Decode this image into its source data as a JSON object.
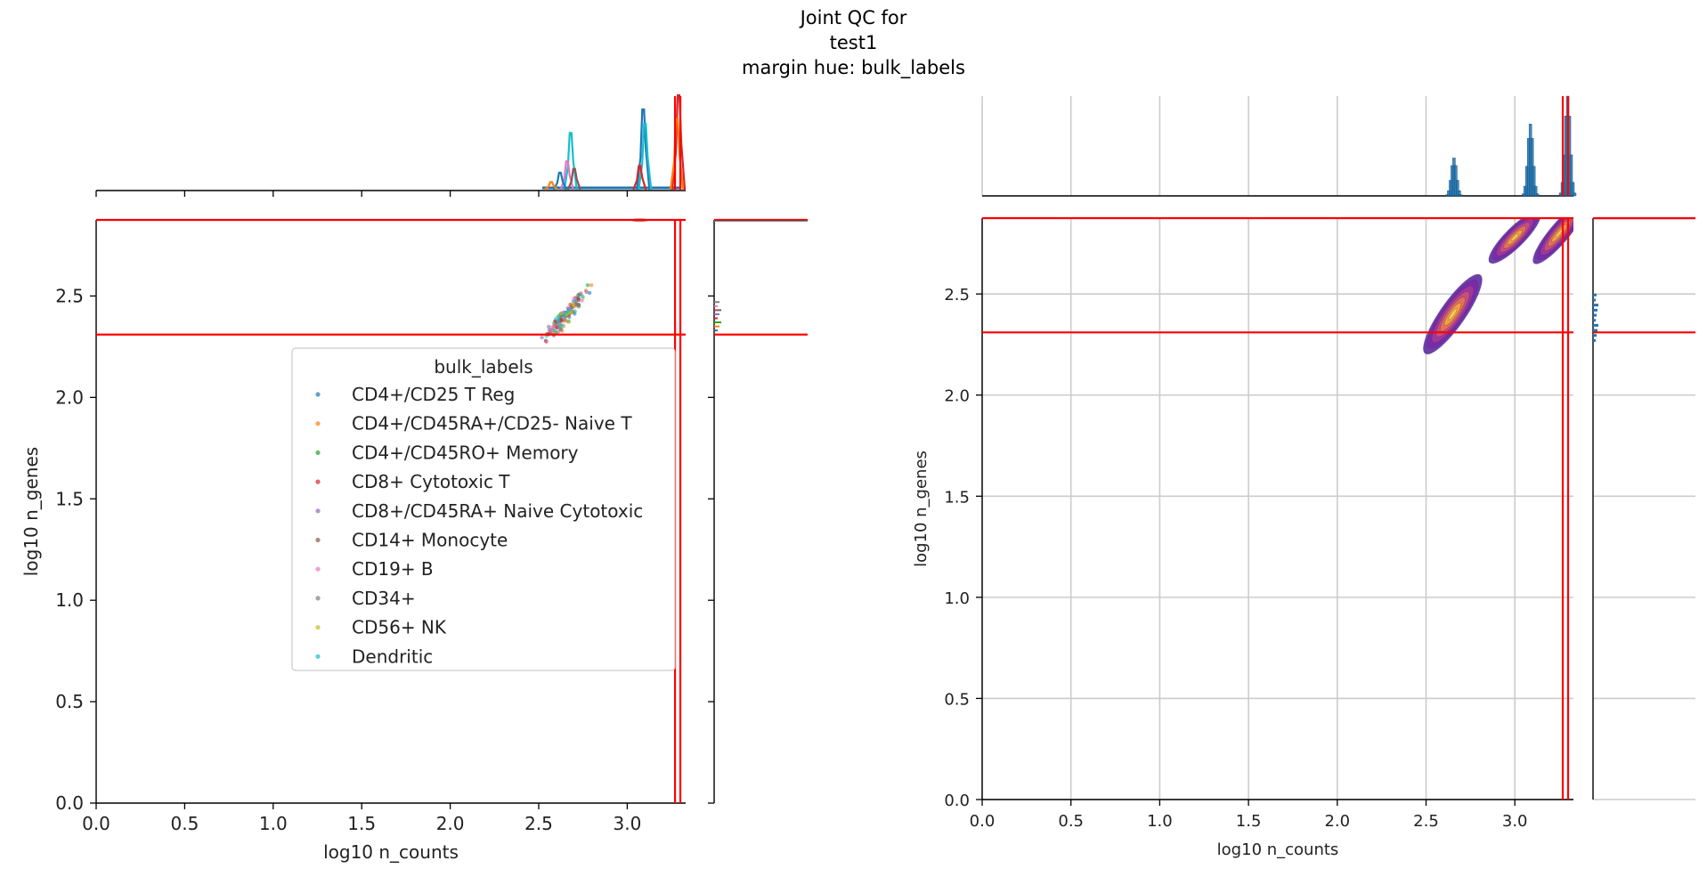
{
  "title_lines": [
    "Joint QC for",
    "test1",
    "margin hue: bulk_labels"
  ],
  "colors": {
    "threshold": "#ff0000",
    "grid": "#cccccc",
    "hist_blue": "#1f77b4",
    "hue_palette": [
      "#1f77b4",
      "#ff7f0e",
      "#2ca02c",
      "#d62728",
      "#9467bd",
      "#8c564b",
      "#e377c2",
      "#7f7f7f",
      "#bcbd22",
      "#17becf"
    ],
    "kde_palette": [
      "#5d2c9e",
      "#7b2aa6",
      "#a23a98",
      "#c9527a",
      "#e3774f",
      "#f4a73a",
      "#fbd04a"
    ]
  },
  "thresholds": {
    "x_vertical": [
      3.27,
      3.3
    ],
    "y_horizontal": [
      2.31,
      2.875
    ]
  },
  "chart_data": [
    {
      "type": "scatter",
      "id": "left-joint",
      "xlabel": "log10 n_counts",
      "ylabel": "log10 n_genes",
      "xlim": [
        0.0,
        3.33
      ],
      "ylim": [
        0.0,
        2.875
      ],
      "xticks": [
        "0.0",
        "0.5",
        "1.0",
        "1.5",
        "2.0",
        "2.5",
        "3.0"
      ],
      "yticks": [
        "0.0",
        "0.5",
        "1.0",
        "1.5",
        "2.0",
        "2.5"
      ],
      "grid": false,
      "legend": {
        "title": "bulk_labels",
        "placement": "center-right",
        "entries": [
          "CD4+/CD25 T Reg",
          "CD4+/CD45RA+/CD25- Naive T",
          "CD4+/CD45RO+ Memory",
          "CD8+ Cytotoxic T",
          "CD8+/CD45RA+ Naive Cytotoxic",
          "CD14+ Monocyte",
          "CD19+ B",
          "CD34+",
          "CD56+ NK",
          "Dendritic"
        ]
      },
      "cluster": {
        "x_center": 2.65,
        "x_spread": 0.07,
        "y_at_center": 2.4,
        "slope": 1.0,
        "points_per_label": 14
      },
      "marginal_x": {
        "type": "histogram-by-hue",
        "peaks": [
          {
            "x": 2.68,
            "height": 0.6,
            "label_index": 9
          },
          {
            "x": 2.66,
            "height": 0.3,
            "label_index": 6
          },
          {
            "x": 2.62,
            "height": 0.18,
            "label_index": 0
          },
          {
            "x": 2.7,
            "height": 0.22,
            "label_index": 5
          },
          {
            "x": 2.57,
            "height": 0.08,
            "label_index": 1
          },
          {
            "x": 3.09,
            "height": 0.85,
            "label_index": 0
          },
          {
            "x": 3.1,
            "height": 0.7,
            "label_index": 9
          },
          {
            "x": 3.07,
            "height": 0.25,
            "label_index": 3
          },
          {
            "x": 3.29,
            "height": 1.0,
            "label_index": 3
          },
          {
            "x": 3.28,
            "height": 0.75,
            "label_index": 1
          }
        ]
      }
    },
    {
      "type": "kde",
      "id": "right-joint",
      "xlabel": "log10 n_counts",
      "ylabel": "log10 n_genes",
      "xlim": [
        0.0,
        3.33
      ],
      "ylim": [
        0.0,
        2.875
      ],
      "xticks": [
        "0.0",
        "0.5",
        "1.0",
        "1.5",
        "2.0",
        "2.5",
        "3.0"
      ],
      "yticks": [
        "0.0",
        "0.5",
        "1.0",
        "1.5",
        "2.0",
        "2.5"
      ],
      "grid": true,
      "kde_blobs": [
        {
          "x": 2.65,
          "y": 2.4,
          "rx": 0.27,
          "ry": 0.07,
          "angle_deg": -55
        },
        {
          "x": 3.0,
          "y": 2.78,
          "rx": 0.2,
          "ry": 0.055,
          "angle_deg": -45
        },
        {
          "x": 3.25,
          "y": 2.8,
          "rx": 0.22,
          "ry": 0.055,
          "angle_deg": -50
        }
      ],
      "marginal_x": {
        "type": "histogram",
        "peaks": [
          {
            "x": 2.66,
            "height": 0.38
          },
          {
            "x": 3.09,
            "height": 0.72
          },
          {
            "x": 3.3,
            "height": 1.0
          }
        ]
      }
    }
  ]
}
